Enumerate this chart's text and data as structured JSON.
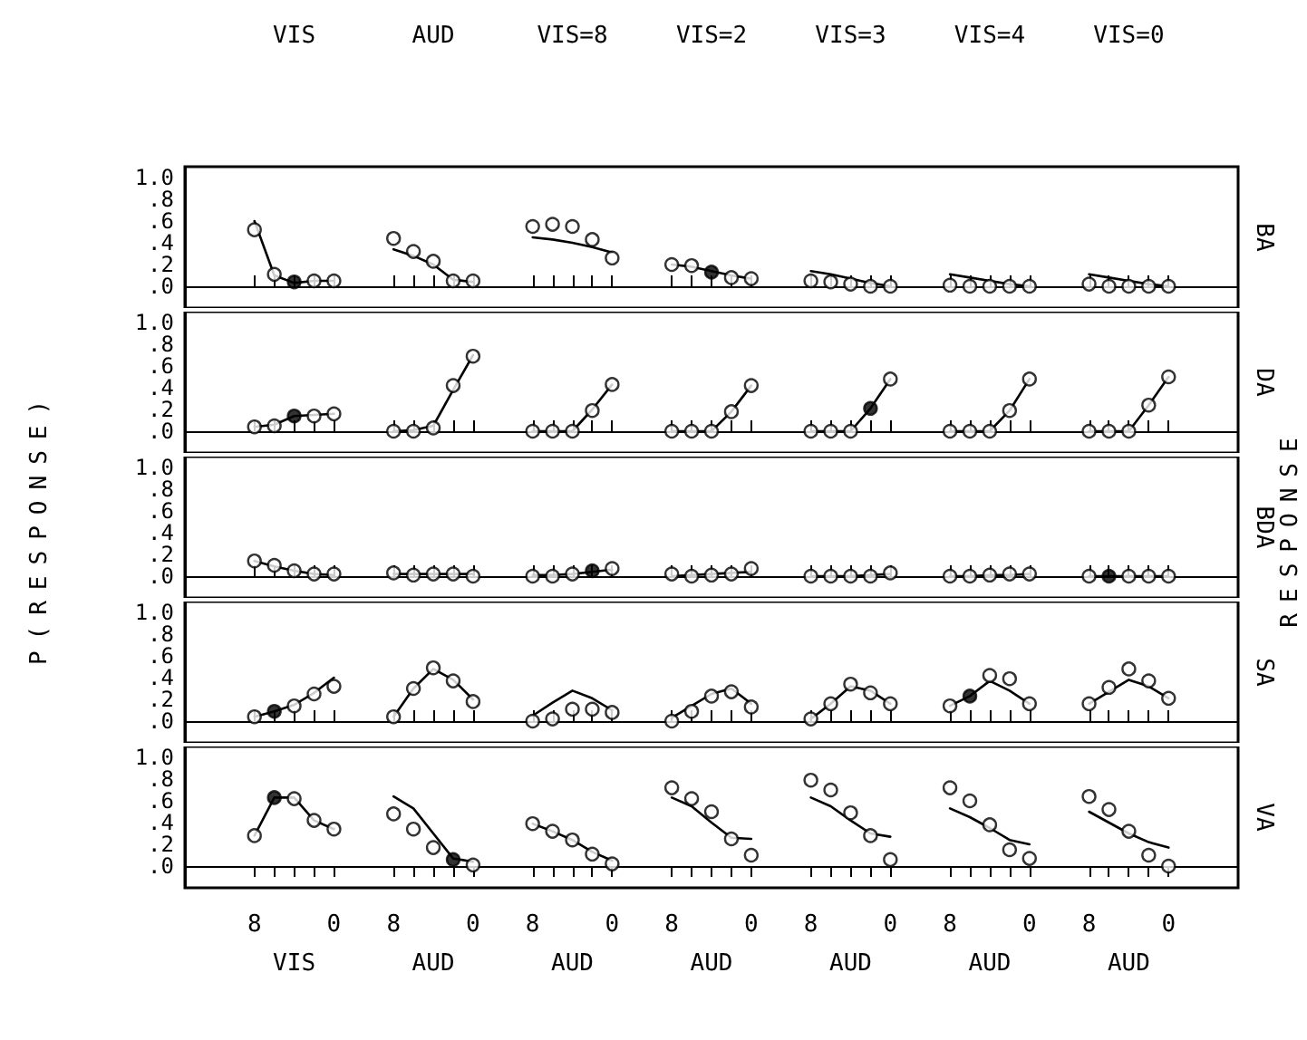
{
  "chart_data": [
    {
      "type": "line",
      "title": "BA",
      "annotations": [
        "VIS",
        "AUD",
        "VIS=8",
        "VIS=2",
        "VIS=3",
        "VIS=4",
        "VIS=0"
      ],
      "categories": [
        null,
        null,
        null,
        "8",
        null,
        null,
        null,
        "0",
        null,
        null,
        "8",
        null,
        null,
        null,
        "0",
        null,
        null,
        "8",
        null,
        null,
        null,
        "0",
        null,
        null,
        "8",
        null,
        null,
        null,
        "0",
        null,
        null,
        "8",
        null,
        null,
        null,
        "0",
        null,
        null,
        "8",
        null,
        null,
        null,
        "0",
        null,
        null,
        "8",
        null,
        null,
        null,
        "0",
        null,
        null,
        null
      ],
      "series": [
        {
          "type": "scatter",
          "marker": "circle",
          "color": "#000000",
          "values": [
            null,
            null,
            null,
            0.52,
            0.11,
            0.04,
            0.05,
            0.05,
            null,
            null,
            0.44,
            0.32,
            0.23,
            0.05,
            0.05,
            null,
            null,
            0.55,
            0.57,
            0.55,
            0.43,
            0.26,
            null,
            null,
            0.2,
            0.19,
            0.13,
            0.08,
            0.07,
            null,
            null,
            0.05,
            0.04,
            0.02,
            0,
            0,
            null,
            null,
            0.01,
            0,
            0,
            0,
            0,
            null,
            null,
            0.02,
            0,
            0,
            0,
            0,
            null,
            null,
            null
          ],
          "colors": [
            null,
            null,
            null,
            "#ffffff",
            "#ffffff",
            "#000000",
            "#ffffff",
            "#ffffff",
            null,
            null,
            "#ffffff",
            "#ffffff",
            "#ffffff",
            "#ffffff",
            "#ffffff",
            null,
            null,
            "#ffffff",
            "#ffffff",
            "#ffffff",
            "#ffffff",
            "#ffffff",
            null,
            null,
            "#ffffff",
            "#ffffff",
            "#000000",
            "#ffffff",
            "#ffffff",
            null,
            null,
            "#ffffff",
            "#ffffff",
            "#ffffff",
            "#ffffff",
            "#ffffff",
            null,
            null,
            "#ffffff",
            "#ffffff",
            "#ffffff",
            "#ffffff",
            "#ffffff",
            null,
            null,
            "#ffffff",
            "#ffffff",
            "#ffffff",
            "#ffffff",
            "#ffffff",
            null,
            null,
            null
          ]
        },
        {
          "marker": "none",
          "color": "#000000",
          "values": [
            null,
            null,
            null,
            0.6,
            0.1,
            0.03,
            0.05,
            0.05,
            null,
            null,
            0.34,
            0.28,
            0.2,
            0.06,
            0.04,
            null,
            null,
            0.45,
            0.43,
            0.4,
            0.36,
            0.31,
            null,
            null,
            0.2,
            0.18,
            0.14,
            0.1,
            0.07,
            null,
            null,
            0.14,
            0.11,
            0.07,
            0.03,
            0,
            null,
            null,
            0.11,
            0.08,
            0.05,
            0.02,
            0,
            null,
            null,
            0.11,
            0.08,
            0.05,
            0.02,
            0,
            null,
            null,
            null
          ]
        }
      ],
      "ylim": [
        -0.2,
        1.1
      ],
      "yticks": [
        {
          "value": 0,
          "label": ".0"
        },
        {
          "value": 0.2,
          "label": ".2"
        },
        {
          "value": 0.4,
          "label": ".4"
        },
        {
          "value": 0.6,
          "label": ".6"
        },
        {
          "value": 0.8,
          "label": ".8"
        },
        {
          "value": 1,
          "label": "1.0"
        }
      ],
      "tick_labels": "y"
    },
    {
      "type": "line",
      "title": "DA",
      "categories": [
        null,
        null,
        null,
        "8",
        null,
        null,
        null,
        "0",
        null,
        null,
        "8",
        null,
        null,
        null,
        "0",
        null,
        null,
        "8",
        null,
        null,
        null,
        "0",
        null,
        null,
        "8",
        null,
        null,
        null,
        "0",
        null,
        null,
        "8",
        null,
        null,
        null,
        "0",
        null,
        null,
        "8",
        null,
        null,
        null,
        "0",
        null,
        null,
        "8",
        null,
        null,
        null,
        "0",
        null,
        null,
        null
      ],
      "series": [
        {
          "type": "scatter",
          "marker": "circle",
          "color": "#000000",
          "values": [
            null,
            null,
            null,
            0.04,
            0.05,
            0.14,
            0.14,
            0.16,
            null,
            null,
            0,
            0,
            0.03,
            0.42,
            0.69,
            null,
            null,
            0,
            0,
            0,
            0.19,
            0.43,
            null,
            null,
            0,
            0,
            0,
            0.18,
            0.42,
            null,
            null,
            0,
            0,
            0,
            0.21,
            0.48,
            null,
            null,
            0,
            0,
            0,
            0.19,
            0.48,
            null,
            null,
            0,
            0,
            0,
            0.24,
            0.5,
            null,
            null,
            null
          ],
          "colors": [
            null,
            null,
            null,
            "#ffffff",
            "#ffffff",
            "#000000",
            "#ffffff",
            "#ffffff",
            null,
            null,
            "#ffffff",
            "#ffffff",
            "#ffffff",
            "#ffffff",
            "#ffffff",
            null,
            null,
            "#ffffff",
            "#ffffff",
            "#ffffff",
            "#ffffff",
            "#ffffff",
            null,
            null,
            "#ffffff",
            "#ffffff",
            "#ffffff",
            "#ffffff",
            "#ffffff",
            null,
            null,
            "#ffffff",
            "#ffffff",
            "#ffffff",
            "#000000",
            "#ffffff",
            null,
            null,
            "#ffffff",
            "#ffffff",
            "#ffffff",
            "#ffffff",
            "#ffffff",
            null,
            null,
            "#ffffff",
            "#ffffff",
            "#ffffff",
            "#ffffff",
            "#ffffff",
            null,
            null,
            null
          ]
        },
        {
          "marker": "none",
          "color": "#000000",
          "values": [
            null,
            null,
            null,
            0.04,
            0.06,
            0.14,
            0.15,
            0.16,
            null,
            null,
            0,
            0.01,
            0.05,
            0.38,
            0.7,
            null,
            null,
            0,
            0,
            0,
            0.2,
            0.43,
            null,
            null,
            0,
            0,
            0,
            0.18,
            0.42,
            null,
            null,
            0,
            0,
            0,
            0.21,
            0.48,
            null,
            null,
            0,
            0,
            0,
            0.19,
            0.48,
            null,
            null,
            0,
            0,
            0,
            0.24,
            0.5,
            null,
            null,
            null
          ]
        }
      ],
      "ylim": [
        -0.2,
        1.1
      ],
      "yticks": [
        {
          "value": 0,
          "label": ".0"
        },
        {
          "value": 0.2,
          "label": ".2"
        },
        {
          "value": 0.4,
          "label": ".4"
        },
        {
          "value": 0.6,
          "label": ".6"
        },
        {
          "value": 0.8,
          "label": ".8"
        },
        {
          "value": 1,
          "label": "1.0"
        }
      ],
      "tick_labels": "y"
    },
    {
      "type": "line",
      "title": "BDA",
      "ylabel": "P(RESPONSE)",
      "y2label": "RESPONSE",
      "categories": [
        null,
        null,
        null,
        "8",
        null,
        null,
        null,
        "0",
        null,
        null,
        "8",
        null,
        null,
        null,
        "0",
        null,
        null,
        "8",
        null,
        null,
        null,
        "0",
        null,
        null,
        "8",
        null,
        null,
        null,
        "0",
        null,
        null,
        "8",
        null,
        null,
        null,
        "0",
        null,
        null,
        "8",
        null,
        null,
        null,
        "0",
        null,
        null,
        "8",
        null,
        null,
        null,
        "0",
        null,
        null,
        null
      ],
      "series": [
        {
          "type": "scatter",
          "marker": "circle",
          "color": "#000000",
          "values": [
            null,
            null,
            null,
            0.14,
            0.1,
            0.05,
            0.02,
            0.02,
            null,
            null,
            0.03,
            0.01,
            0.02,
            0.02,
            0,
            null,
            null,
            0,
            0,
            0.02,
            0.05,
            0.07,
            null,
            null,
            0.02,
            0,
            0.01,
            0.02,
            0.07,
            null,
            null,
            0,
            0,
            0,
            0,
            0.03,
            null,
            null,
            0,
            0,
            0.01,
            0.02,
            0.02,
            null,
            null,
            0,
            0,
            0,
            0,
            0,
            null,
            null,
            null
          ],
          "colors": [
            null,
            null,
            null,
            "#ffffff",
            "#ffffff",
            "#ffffff",
            "#ffffff",
            "#ffffff",
            null,
            null,
            "#ffffff",
            "#ffffff",
            "#ffffff",
            "#ffffff",
            "#ffffff",
            null,
            null,
            "#ffffff",
            "#ffffff",
            "#ffffff",
            "#000000",
            "#ffffff",
            null,
            null,
            "#ffffff",
            "#ffffff",
            "#ffffff",
            "#ffffff",
            "#ffffff",
            null,
            null,
            "#ffffff",
            "#ffffff",
            "#ffffff",
            "#ffffff",
            "#ffffff",
            null,
            null,
            "#ffffff",
            "#ffffff",
            "#ffffff",
            "#ffffff",
            "#ffffff",
            null,
            null,
            "#ffffff",
            "#000000",
            "#ffffff",
            "#ffffff",
            "#ffffff",
            null,
            null,
            null
          ]
        },
        {
          "marker": "none",
          "color": "#000000",
          "values": [
            null,
            null,
            null,
            0.14,
            0.09,
            0.05,
            0.02,
            0.01,
            null,
            null,
            0.02,
            0.02,
            0.02,
            0.02,
            0.02,
            null,
            null,
            0.01,
            0.01,
            0.02,
            0.04,
            0.06,
            null,
            null,
            0,
            0.01,
            0.02,
            0.03,
            0.04,
            null,
            null,
            0,
            0,
            0,
            0.01,
            0.02,
            null,
            null,
            0,
            0,
            0.01,
            0.01,
            0.02,
            null,
            null,
            0,
            0,
            0,
            0,
            0,
            null,
            null,
            null
          ]
        }
      ],
      "ylim": [
        -0.2,
        1.1
      ],
      "yticks": [
        {
          "value": 0,
          "label": ".0"
        },
        {
          "value": 0.2,
          "label": ".2"
        },
        {
          "value": 0.4,
          "label": ".4"
        },
        {
          "value": 0.6,
          "label": ".6"
        },
        {
          "value": 0.8,
          "label": ".8"
        },
        {
          "value": 1,
          "label": "1.0"
        }
      ],
      "tick_labels": "y"
    },
    {
      "type": "line",
      "title": "SA",
      "categories": [
        null,
        null,
        null,
        "8",
        null,
        null,
        null,
        "0",
        null,
        null,
        "8",
        null,
        null,
        null,
        "0",
        null,
        null,
        "8",
        null,
        null,
        null,
        "0",
        null,
        null,
        "8",
        null,
        null,
        null,
        "0",
        null,
        null,
        "8",
        null,
        null,
        null,
        "0",
        null,
        null,
        "8",
        null,
        null,
        null,
        "0",
        null,
        null,
        "8",
        null,
        null,
        null,
        "0",
        null,
        null,
        null
      ],
      "series": [
        {
          "type": "scatter",
          "marker": "circle",
          "color": "#000000",
          "values": [
            null,
            null,
            null,
            0.04,
            0.09,
            0.14,
            0.25,
            0.32,
            null,
            null,
            0.04,
            0.3,
            0.49,
            0.37,
            0.18,
            null,
            null,
            0,
            0.02,
            0.11,
            0.11,
            0.08,
            null,
            null,
            0,
            0.09,
            0.23,
            0.27,
            0.13,
            null,
            null,
            0.02,
            0.16,
            0.34,
            0.26,
            0.16,
            null,
            null,
            0.14,
            0.23,
            0.42,
            0.39,
            0.16,
            null,
            null,
            0.16,
            0.31,
            0.48,
            0.37,
            0.21,
            null,
            null,
            null
          ],
          "colors": [
            null,
            null,
            null,
            "#ffffff",
            "#000000",
            "#ffffff",
            "#ffffff",
            "#ffffff",
            null,
            null,
            "#ffffff",
            "#ffffff",
            "#ffffff",
            "#ffffff",
            "#ffffff",
            null,
            null,
            "#ffffff",
            "#ffffff",
            "#ffffff",
            "#ffffff",
            "#ffffff",
            null,
            null,
            "#ffffff",
            "#ffffff",
            "#ffffff",
            "#ffffff",
            "#ffffff",
            null,
            null,
            "#ffffff",
            "#ffffff",
            "#ffffff",
            "#ffffff",
            "#ffffff",
            null,
            null,
            "#ffffff",
            "#000000",
            "#ffffff",
            "#ffffff",
            "#ffffff",
            null,
            null,
            "#ffffff",
            "#ffffff",
            "#ffffff",
            "#ffffff",
            "#ffffff",
            null,
            null,
            null
          ]
        },
        {
          "marker": "none",
          "color": "#000000",
          "values": [
            null,
            null,
            null,
            0.04,
            0.09,
            0.15,
            0.26,
            0.4,
            null,
            null,
            0.04,
            0.3,
            0.48,
            0.38,
            0.2,
            null,
            null,
            0.05,
            0.17,
            0.28,
            0.21,
            0.1,
            null,
            null,
            0.03,
            0.14,
            0.25,
            0.3,
            0.16,
            null,
            null,
            0.02,
            0.16,
            0.32,
            0.28,
            0.16,
            null,
            null,
            0.14,
            0.23,
            0.37,
            0.28,
            0.16,
            null,
            null,
            0.16,
            0.27,
            0.38,
            0.32,
            0.21,
            null,
            null,
            null
          ]
        }
      ],
      "ylim": [
        -0.2,
        1.1
      ],
      "yticks": [
        {
          "value": 0,
          "label": ".0"
        },
        {
          "value": 0.2,
          "label": ".2"
        },
        {
          "value": 0.4,
          "label": ".4"
        },
        {
          "value": 0.6,
          "label": ".6"
        },
        {
          "value": 0.8,
          "label": ".8"
        },
        {
          "value": 1,
          "label": "1.0"
        }
      ],
      "tick_labels": "y"
    },
    {
      "type": "line",
      "title": "VA",
      "annotations": [
        "VIS",
        "AUD",
        "AUD",
        "AUD",
        "AUD",
        "AUD",
        "AUD"
      ],
      "categories": [
        null,
        null,
        null,
        "8",
        null,
        null,
        null,
        "0",
        null,
        null,
        "8",
        null,
        null,
        null,
        "0",
        null,
        null,
        "8",
        null,
        null,
        null,
        "0",
        null,
        null,
        "8",
        null,
        null,
        null,
        "0",
        null,
        null,
        "8",
        null,
        null,
        null,
        "0",
        null,
        null,
        "8",
        null,
        null,
        null,
        "0",
        null,
        null,
        "8",
        null,
        null,
        null,
        "0",
        null,
        null,
        null
      ],
      "series": [
        {
          "type": "scatter",
          "marker": "circle",
          "color": "#000000",
          "values": [
            null,
            null,
            null,
            0.28,
            0.63,
            0.62,
            0.42,
            0.34,
            null,
            null,
            0.48,
            0.34,
            0.17,
            0.06,
            0.01,
            null,
            null,
            0.39,
            0.32,
            0.24,
            0.11,
            0.02,
            null,
            null,
            0.72,
            0.62,
            0.5,
            0.25,
            0.1,
            null,
            null,
            0.79,
            0.7,
            0.49,
            0.28,
            0.06,
            null,
            null,
            0.72,
            0.6,
            0.38,
            0.15,
            0.07,
            null,
            null,
            0.64,
            0.52,
            0.32,
            0.1,
            0,
            null,
            null,
            null
          ],
          "colors": [
            null,
            null,
            null,
            "#ffffff",
            "#000000",
            "#ffffff",
            "#ffffff",
            "#ffffff",
            null,
            null,
            "#ffffff",
            "#ffffff",
            "#ffffff",
            "#000000",
            "#ffffff",
            null,
            null,
            "#ffffff",
            "#ffffff",
            "#ffffff",
            "#ffffff",
            "#ffffff",
            null,
            null,
            "#ffffff",
            "#ffffff",
            "#ffffff",
            "#ffffff",
            "#ffffff",
            null,
            null,
            "#ffffff",
            "#ffffff",
            "#ffffff",
            "#ffffff",
            "#ffffff",
            null,
            null,
            "#ffffff",
            "#ffffff",
            "#ffffff",
            "#ffffff",
            "#ffffff",
            null,
            null,
            "#ffffff",
            "#ffffff",
            "#ffffff",
            "#ffffff",
            "#ffffff",
            null,
            null,
            null
          ]
        },
        {
          "marker": "none",
          "color": "#000000",
          "values": [
            null,
            null,
            null,
            0.28,
            0.63,
            0.63,
            0.42,
            0.34,
            null,
            null,
            0.64,
            0.53,
            0.3,
            0.07,
            0.04,
            null,
            null,
            0.39,
            0.32,
            0.24,
            0.13,
            0.05,
            null,
            null,
            0.63,
            0.55,
            0.4,
            0.26,
            0.25,
            null,
            null,
            0.63,
            0.55,
            0.42,
            0.3,
            0.27,
            null,
            null,
            0.53,
            0.45,
            0.35,
            0.24,
            0.2,
            null,
            null,
            0.5,
            0.4,
            0.3,
            0.22,
            0.17,
            null,
            null,
            null
          ]
        }
      ],
      "ylim": [
        -0.2,
        1.1
      ],
      "yticks": [
        {
          "value": 0,
          "label": ".0"
        },
        {
          "value": 0.2,
          "label": ".2"
        },
        {
          "value": 0.4,
          "label": ".4"
        },
        {
          "value": 0.6,
          "label": ".6"
        },
        {
          "value": 0.8,
          "label": ".8"
        },
        {
          "value": 1,
          "label": "1.0"
        }
      ]
    }
  ]
}
